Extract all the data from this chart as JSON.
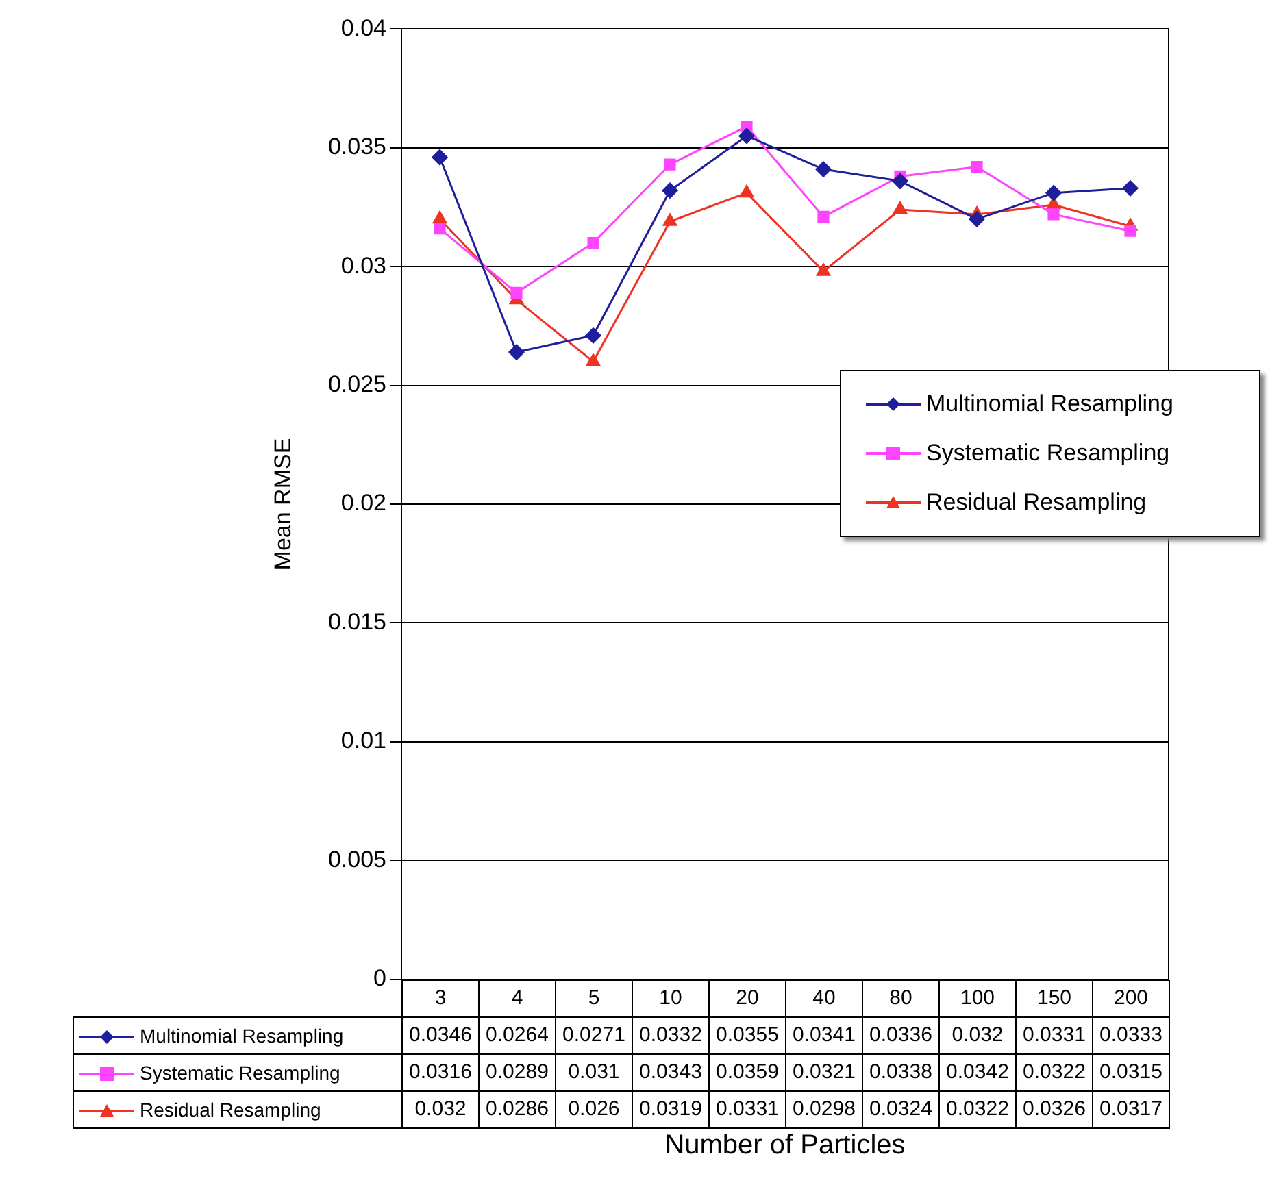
{
  "chart_data": {
    "type": "line",
    "xlabel": "Number of Particles",
    "ylabel": "Mean RMSE",
    "categories": [
      "3",
      "4",
      "5",
      "10",
      "20",
      "40",
      "80",
      "100",
      "150",
      "200"
    ],
    "series": [
      {
        "name": "Multinomial Resampling",
        "color": "#1f1f9c",
        "marker": "diamond",
        "values": [
          0.0346,
          0.0264,
          0.0271,
          0.0332,
          0.0355,
          0.0341,
          0.0336,
          0.032,
          0.0331,
          0.0333
        ]
      },
      {
        "name": "Systematic Resampling",
        "color": "#ff44ff",
        "marker": "square",
        "values": [
          0.0316,
          0.0289,
          0.031,
          0.0343,
          0.0359,
          0.0321,
          0.0338,
          0.0342,
          0.0322,
          0.0315
        ]
      },
      {
        "name": "Residual Resampling",
        "color": "#ee3322",
        "marker": "triangle",
        "values": [
          0.032,
          0.0286,
          0.026,
          0.0319,
          0.0331,
          0.0298,
          0.0324,
          0.0322,
          0.0326,
          0.0317
        ]
      }
    ],
    "ylim": [
      0,
      0.04
    ],
    "yticks": [
      0,
      0.005,
      0.01,
      0.015,
      0.02,
      0.025,
      0.03,
      0.035,
      0.04
    ],
    "grid": "y",
    "legend": "right",
    "line_style": "solid",
    "data_labels": true
  }
}
